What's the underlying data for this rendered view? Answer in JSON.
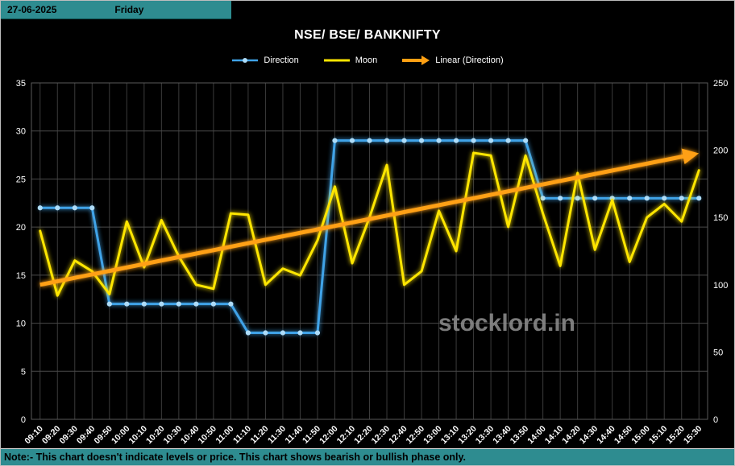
{
  "header": {
    "date": "27-06-2025",
    "day": "Friday"
  },
  "note": {
    "text": "Note:- This chart doesn't indicate levels or price. This chart shows bearish or bullish phase only."
  },
  "watermark": "stocklord.in",
  "colors": {
    "header_bg": "#2E8C90",
    "note_bg": "#2E8C90",
    "background": "#000000",
    "grid": "#454545",
    "axis_text": "#FFFFFF",
    "watermark_gray": "#8D8D8D"
  },
  "chart_data": {
    "type": "line",
    "title": "NSE/ BSE/ BANKNIFTY",
    "legend_position": "top",
    "grid": true,
    "categories": [
      "09:10",
      "09:20",
      "09:30",
      "09:40",
      "09:50",
      "10:00",
      "10:10",
      "10:20",
      "10:30",
      "10:40",
      "10:50",
      "11:00",
      "11:10",
      "11:20",
      "11:30",
      "11:40",
      "11:50",
      "12:00",
      "12:10",
      "12:20",
      "12:30",
      "12:40",
      "12:50",
      "13:00",
      "13:10",
      "13:20",
      "13:30",
      "13:40",
      "13:50",
      "14:00",
      "14:10",
      "14:20",
      "14:30",
      "14:40",
      "14:50",
      "15:00",
      "15:10",
      "15:20",
      "15:30"
    ],
    "left_axis": {
      "min": 0,
      "max": 35,
      "step": 5,
      "ticks": [
        0,
        5,
        10,
        15,
        20,
        25,
        30,
        35
      ]
    },
    "right_axis": {
      "min": 0,
      "max": 250,
      "step": 50,
      "ticks": [
        0,
        50,
        100,
        150,
        200,
        250
      ]
    },
    "series": [
      {
        "name": "Direction",
        "axis": "left",
        "color": "#3FA3E8",
        "marker": true,
        "marker_color": "#AEDCF8",
        "values": [
          22,
          22,
          22,
          22,
          12,
          12,
          12,
          12,
          12,
          12,
          12,
          12,
          9,
          9,
          9,
          9,
          9,
          29,
          29,
          29,
          29,
          29,
          29,
          29,
          29,
          29,
          29,
          29,
          29,
          23,
          23,
          23,
          23,
          23,
          23,
          23,
          23,
          23,
          23
        ]
      },
      {
        "name": "Moon",
        "axis": "right",
        "color": "#FFE600",
        "marker": false,
        "values": [
          140,
          92,
          118,
          110,
          93,
          147,
          113,
          148,
          121,
          100,
          97,
          153,
          152,
          100,
          112,
          107,
          133,
          173,
          116,
          150,
          189,
          100,
          110,
          155,
          125,
          198,
          196,
          143,
          196,
          153,
          114,
          183,
          126,
          163,
          117,
          150,
          160,
          147,
          185
        ]
      }
    ],
    "trendline": {
      "name": "Linear (Direction)",
      "axis": "right",
      "color": "#FFA013",
      "start": 100,
      "end": 197
    }
  }
}
